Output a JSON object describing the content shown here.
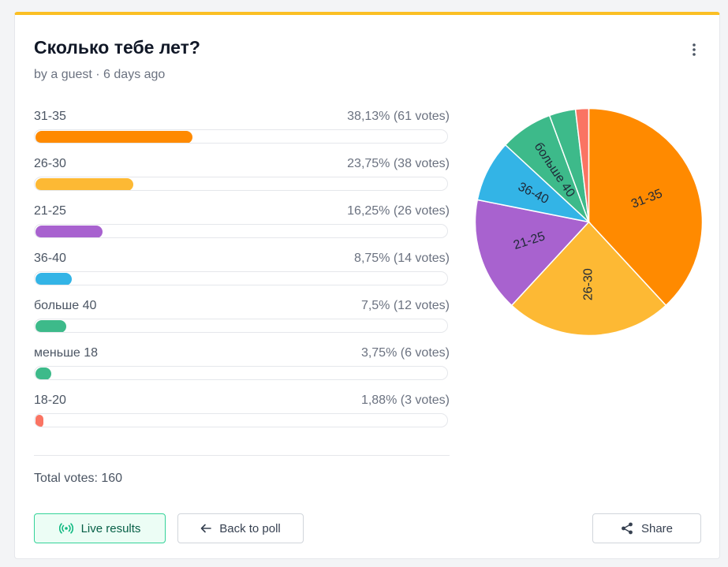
{
  "poll": {
    "title": "Сколько тебе лет?",
    "meta": "by a guest · 6 days ago",
    "total_votes_label": "Total votes: 160"
  },
  "chart_data": {
    "type": "bar",
    "options": [
      {
        "label": "31-35",
        "percent_text": "38,13% (61 votes)",
        "votes": 61,
        "percent": 38.13,
        "color": "#ff8a00"
      },
      {
        "label": "26-30",
        "percent_text": "23,75% (38 votes)",
        "votes": 38,
        "percent": 23.75,
        "color": "#fdb934"
      },
      {
        "label": "21-25",
        "percent_text": "16,25% (26 votes)",
        "votes": 26,
        "percent": 16.25,
        "color": "#a862cf"
      },
      {
        "label": "36-40",
        "percent_text": "8,75% (14 votes)",
        "votes": 14,
        "percent": 8.75,
        "color": "#33b4e6"
      },
      {
        "label": "больше 40",
        "percent_text": "7,5% (12 votes)",
        "votes": 12,
        "percent": 7.5,
        "color": "#3dba8a"
      },
      {
        "label": "меньше 18",
        "percent_text": "3,75% (6 votes)",
        "votes": 6,
        "percent": 3.75,
        "color": "#3dba8a"
      },
      {
        "label": "18-20",
        "percent_text": "1,88% (3 votes)",
        "votes": 3,
        "percent": 1.88,
        "color": "#fa7463"
      }
    ],
    "pie": {
      "type": "pie",
      "slice_labels_shown": [
        "31-35",
        "26-30",
        "21-25",
        "36-40",
        "больше 40"
      ]
    }
  },
  "buttons": {
    "live_results": "Live results",
    "back_to_poll": "Back to poll",
    "share": "Share"
  },
  "icons": {
    "live": "live-broadcast-icon",
    "back": "arrow-left-icon",
    "share": "share-icon",
    "menu": "kebab-menu-icon"
  }
}
